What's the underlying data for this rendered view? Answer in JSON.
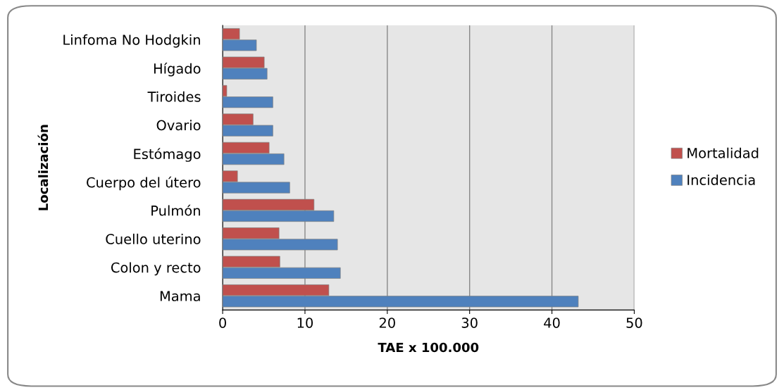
{
  "chart_data": {
    "type": "bar",
    "orientation": "horizontal",
    "xlabel": "TAE x 100.000",
    "ylabel": "Localización",
    "categories": [
      "Linfoma No Hodgkin",
      "Hígado",
      "Tiroides",
      "Ovario",
      "Estómago",
      "Cuerpo del útero",
      "Pulmón",
      "Cuello uterino",
      "Colon y recto",
      "Mama"
    ],
    "series": [
      {
        "name": "Mortalidad",
        "color": "#c0504d",
        "values": [
          2.05,
          5.05,
          0.5,
          3.7,
          5.65,
          1.8,
          11.1,
          6.85,
          6.95,
          12.9
        ]
      },
      {
        "name": "Incidencia",
        "color": "#4f81bd",
        "values": [
          4.1,
          5.4,
          6.1,
          6.1,
          7.45,
          8.15,
          13.5,
          13.95,
          14.3,
          43.2
        ]
      }
    ],
    "xlim": [
      0,
      50
    ],
    "xticks": [
      0,
      10,
      20,
      30,
      40,
      50
    ],
    "grid": "x",
    "legend": "right"
  }
}
